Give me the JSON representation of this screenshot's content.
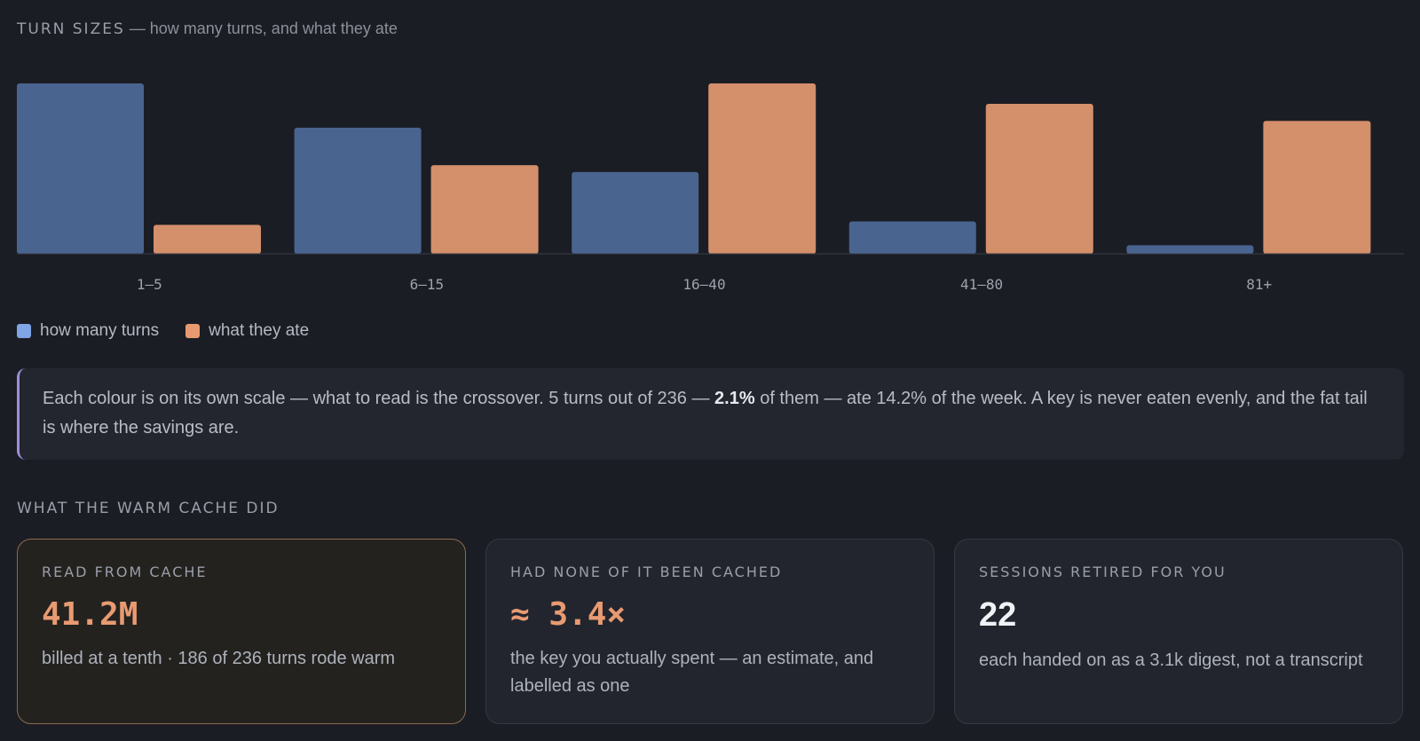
{
  "header": {
    "title": "TURN SIZES",
    "subtitle": " — how many turns, and what they ate"
  },
  "colors": {
    "turns": "#4a6490",
    "ate": "#d48f6b",
    "accent": "#9d8fd6",
    "value_accent": "#e89a72"
  },
  "chart_data": {
    "type": "bar",
    "categories": [
      "1–5",
      "6–15",
      "16–40",
      "41–80",
      "81+"
    ],
    "series": [
      {
        "name": "how many turns",
        "values": [
          100,
          74,
          48,
          19,
          5
        ]
      },
      {
        "name": "what they ate",
        "values": [
          17,
          52,
          100,
          88,
          78
        ]
      }
    ],
    "ylim": [
      0,
      100
    ],
    "scale_note": "each series on its own scale",
    "legend": "bottom-left"
  },
  "note": {
    "text_before": "Each colour is on its own scale — what to read is the crossover. 5 turns out of 236 — ",
    "bold": "2.1%",
    "text_after": " of them — ate 14.2% of the week. A key is never eaten evenly, and the fat tail is where the savings are."
  },
  "cache_section": {
    "title": "WHAT THE WARM CACHE DID"
  },
  "cards": [
    {
      "label": "READ FROM CACHE",
      "value": "41.2M",
      "desc": "billed at a tenth · 186 of 236 turns rode warm"
    },
    {
      "label": "HAD NONE OF IT BEEN CACHED",
      "value": "≈ 3.4×",
      "desc": "the key you actually spent — an estimate, and labelled as one"
    },
    {
      "label": "SESSIONS RETIRED FOR YOU",
      "value": "22",
      "desc": "each handed on as a 3.1k digest, not a transcript"
    }
  ]
}
